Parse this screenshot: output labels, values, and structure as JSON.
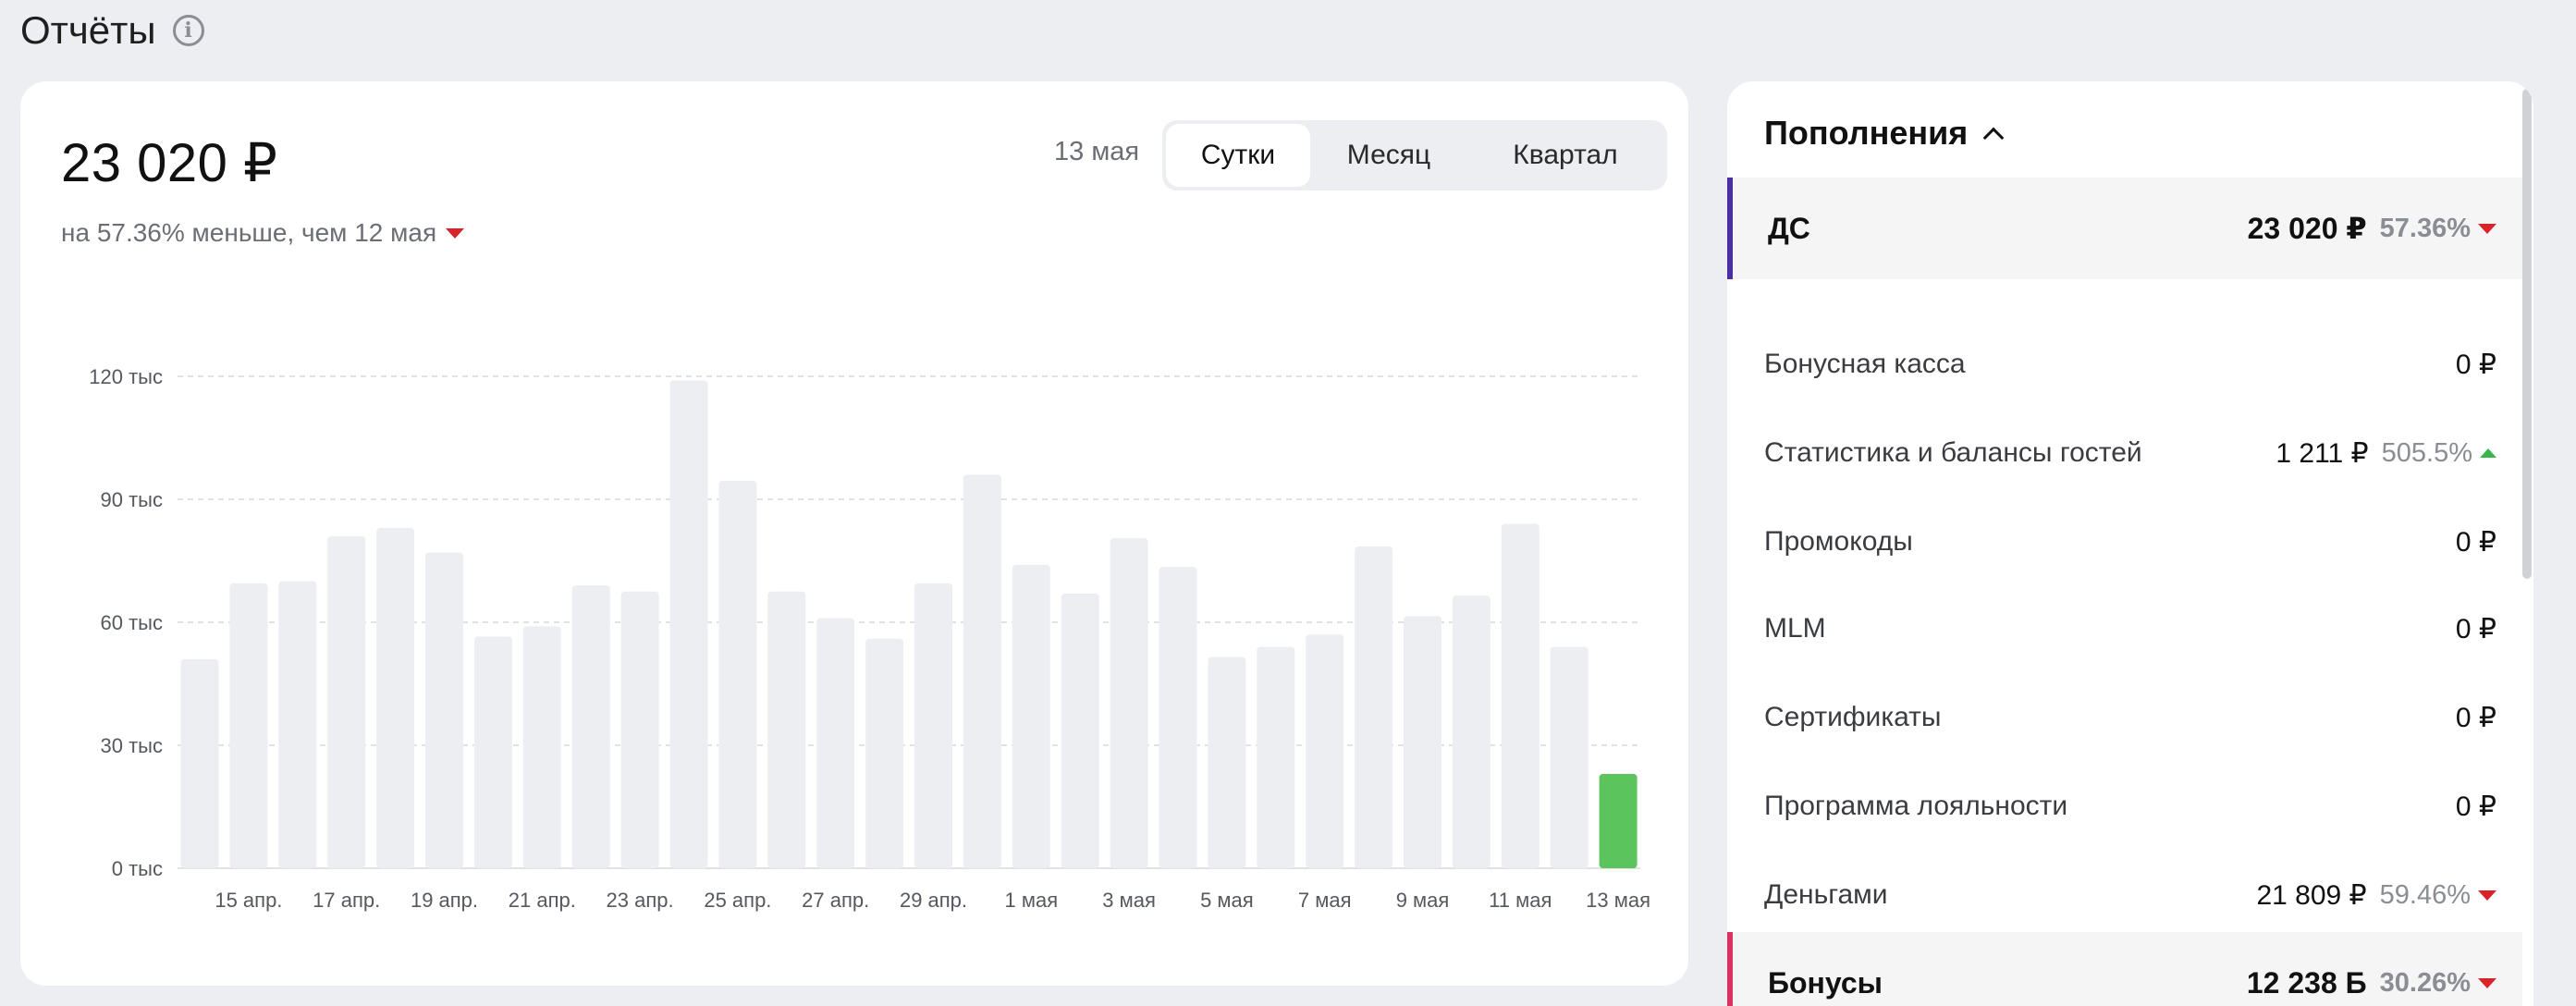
{
  "page": {
    "title": "Отчёты"
  },
  "summary": {
    "amount": "23 020 ₽",
    "comparison": "на 57.36% меньше, чем 12 мая"
  },
  "period": {
    "date": "13 мая",
    "options": [
      "Сутки",
      "Месяц",
      "Квартал"
    ],
    "selected": "Сутки"
  },
  "chart_data": {
    "type": "bar",
    "y_ticks": [
      "0 тыс",
      "30 тыс",
      "60 тыс",
      "90 тыс",
      "120 тыс"
    ],
    "ylim": [
      0,
      120000
    ],
    "x_tick_labels": [
      "15 апр.",
      "17 апр.",
      "19 апр.",
      "21 апр.",
      "23 апр.",
      "25 апр.",
      "27 апр.",
      "29 апр.",
      "1 мая",
      "3 мая",
      "5 мая",
      "7 мая",
      "9 мая",
      "11 мая",
      "13 мая"
    ],
    "categories": [
      "14 апр.",
      "15 апр.",
      "16 апр.",
      "17 апр.",
      "18 апр.",
      "19 апр.",
      "20 апр.",
      "21 апр.",
      "22 апр.",
      "23 апр.",
      "24 апр.",
      "25 апр.",
      "26 апр.",
      "27 апр.",
      "28 апр.",
      "29 апр.",
      "30 апр.",
      "1 мая",
      "2 мая",
      "3 мая",
      "4 мая",
      "5 мая",
      "6 мая",
      "7 мая",
      "8 мая",
      "9 мая",
      "10 мая",
      "11 мая",
      "12 мая",
      "13 мая"
    ],
    "values": [
      51000,
      69500,
      70000,
      81000,
      83000,
      77000,
      56500,
      59000,
      69000,
      67500,
      119000,
      94500,
      67500,
      61000,
      56000,
      69500,
      96000,
      74000,
      67000,
      80500,
      73500,
      51500,
      54000,
      57000,
      78500,
      61500,
      66500,
      84000,
      54000,
      23020
    ],
    "highlight_index": 29,
    "colors": {
      "bar": "#eceef1",
      "highlight": "#5cc45d",
      "grid": "#d7d9dd"
    }
  },
  "side": {
    "title": "Пополнения",
    "rows": [
      {
        "kind": "group",
        "label": "ДС",
        "value": "23 020 ₽",
        "pct": "57.36%",
        "trend": "down",
        "accent": "#4a2fa0"
      },
      {
        "kind": "item",
        "label": "Бонусная касса",
        "value": "0 ₽",
        "pct": "",
        "trend": ""
      },
      {
        "kind": "item",
        "label": "Статистика и балансы гостей",
        "value": "1 211 ₽",
        "pct": "505.5%",
        "trend": "up"
      },
      {
        "kind": "item",
        "label": "Промокоды",
        "value": "0 ₽",
        "pct": "",
        "trend": ""
      },
      {
        "kind": "item",
        "label": "MLM",
        "value": "0 ₽",
        "pct": "",
        "trend": ""
      },
      {
        "kind": "item",
        "label": "Сертификаты",
        "value": "0 ₽",
        "pct": "",
        "trend": ""
      },
      {
        "kind": "item",
        "label": "Программа лояльности",
        "value": "0 ₽",
        "pct": "",
        "trend": ""
      },
      {
        "kind": "item",
        "label": "Деньгами",
        "value": "21 809 ₽",
        "pct": "59.46%",
        "trend": "down"
      },
      {
        "kind": "group",
        "label": "Бонусы",
        "value": "12 238 Б",
        "pct": "30.26%",
        "trend": "down",
        "accent": "#d9345f"
      }
    ]
  }
}
